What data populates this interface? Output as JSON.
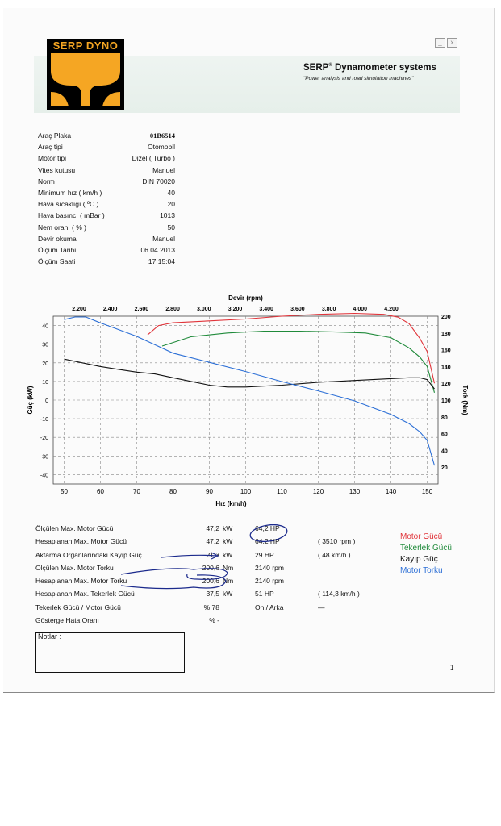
{
  "window_buttons": [
    "_",
    "x"
  ],
  "header": {
    "brand": "SERP DYNO",
    "company": "SERP",
    "company_sup": "®",
    "company_rest": " Dynamometer systems",
    "tagline": "\"Power analysis and road simulation machines\""
  },
  "info": [
    {
      "key": "Araç Plaka",
      "value": "01B6514",
      "bold": true
    },
    {
      "key": "Araç tipi",
      "value": "Otomobil"
    },
    {
      "key": "Motor tipi",
      "value": "Dizel ( Turbo )"
    },
    {
      "key": "Vites kutusu",
      "value": "Manuel"
    },
    {
      "key": "Norm",
      "value": "DIN 70020"
    },
    {
      "key": "Minimum hız  ( km/h )",
      "value": "40"
    },
    {
      "key": "Hava sıcaklığı ( ºC )",
      "value": "20"
    },
    {
      "key": "Hava basıncı ( mBar )",
      "value": "1013"
    },
    {
      "key": "Nem oranı ( % )",
      "value": "50"
    },
    {
      "key": "Devir okuma",
      "value": "Manuel"
    },
    {
      "key": "Ölçüm Tarihi",
      "value": "06.04.2013"
    },
    {
      "key": "Ölçüm Saati",
      "value": "17:15:04"
    }
  ],
  "chart_data": {
    "type": "line",
    "x_top_label": "Devir (rpm)",
    "x_top_ticks": [
      "2.200",
      "2.400",
      "2.600",
      "2.800",
      "3.000",
      "3.200",
      "3.400",
      "3.600",
      "3.800",
      "4.000",
      "4.200"
    ],
    "xlabel": "Hız (km/h)",
    "x_ticks": [
      50,
      60,
      70,
      80,
      90,
      100,
      110,
      120,
      130,
      140,
      150
    ],
    "xlim": [
      47,
      153
    ],
    "ylabel_left": "Güç (kW)",
    "y_left_ticks": [
      40,
      30,
      20,
      10,
      0,
      -10,
      -20,
      -30,
      -40
    ],
    "ylim_left": [
      -45,
      45
    ],
    "ylabel_right": "Tork (Nm)",
    "y_right_ticks": [
      200,
      180,
      160,
      140,
      120,
      100,
      80,
      60,
      40,
      20
    ],
    "ylim_right": [
      0,
      200
    ],
    "grid": true,
    "series": [
      {
        "name": "Motor Gücü",
        "color": "#e0343a",
        "axis": "left",
        "x": [
          73,
          76,
          80,
          90,
          100,
          110,
          120,
          130,
          138,
          142,
          145,
          148,
          150,
          152
        ],
        "y": [
          35,
          40,
          41.5,
          42.5,
          43.5,
          45,
          46,
          46.5,
          46,
          44.5,
          41,
          33,
          26,
          9
        ]
      },
      {
        "name": "Tekerlek Gücü",
        "color": "#1f8a3a",
        "axis": "left",
        "x": [
          77,
          85,
          95,
          105,
          115,
          125,
          133,
          140,
          145,
          148,
          150,
          152
        ],
        "y": [
          29,
          34,
          36,
          37,
          37,
          36.5,
          36,
          33.5,
          28,
          23,
          18,
          4
        ]
      },
      {
        "name": "Kayıp Güç",
        "color": "#111111",
        "axis": "left",
        "x": [
          50,
          55,
          60,
          65,
          70,
          75,
          80,
          85,
          90,
          95,
          100,
          110,
          120,
          130,
          140,
          145,
          148,
          150,
          152
        ],
        "y": [
          22,
          20,
          18,
          16.5,
          15,
          14,
          12,
          10,
          8,
          7,
          7,
          8,
          9.5,
          10.5,
          11.5,
          12,
          12,
          11,
          6
        ]
      },
      {
        "name": "Motor Torku",
        "color": "#2c6fd6",
        "axis": "right",
        "x": [
          50,
          53,
          56,
          60,
          65,
          70,
          75,
          80,
          90,
          100,
          110,
          120,
          130,
          140,
          145,
          148,
          150,
          152
        ],
        "y": [
          196,
          199,
          199,
          192,
          184,
          176,
          166,
          156,
          145,
          134,
          122,
          111,
          99,
          83,
          72,
          62,
          52,
          22
        ]
      }
    ]
  },
  "stats": [
    {
      "label": "Ölçülen Max. Motor Gücü",
      "v1": "47,2",
      "u1": "kW",
      "v2": "64,2 HP",
      "v3": ""
    },
    {
      "label": "Hesaplanan Max. Motor Gücü",
      "v1": "47,2",
      "u1": "kW",
      "v2": "64,2 HP",
      "v3": "( 3510 rpm )"
    },
    {
      "label": "Aktarma Organlarındaki Kayıp Güç",
      "v1": "21,3",
      "u1": "kW",
      "v2": "29 HP",
      "v3": "( 48 km/h )"
    },
    {
      "label": "Ölçülen Max. Motor Torku",
      "v1": "200,6",
      "u1": "Nm",
      "v2": "2140 rpm",
      "v3": ""
    },
    {
      "label": "Hesaplanan Max. Motor Torku",
      "v1": "200,6",
      "u1": "Nm",
      "v2": "2140 rpm",
      "v3": ""
    },
    {
      "label": "Hesaplanan Max. Tekerlek Gücü",
      "v1": "37,5",
      "u1": "kW",
      "v2": "51 HP",
      "v3": "( 114,3 km/h )"
    },
    {
      "label": "Tekerlek Gücü / Motor Gücü",
      "v1": "% 78",
      "u1": "",
      "v2": "On / Arka",
      "v3": "—"
    },
    {
      "label": "Gösterge Hata Oranı",
      "v1": "% -",
      "u1": "",
      "v2": "",
      "v3": ""
    }
  ],
  "legend": [
    {
      "label": "Motor Gücü",
      "color": "#e0343a"
    },
    {
      "label": "Tekerlek Gücü",
      "color": "#1f8a3a"
    },
    {
      "label": "Kayıp Güç",
      "color": "#111111"
    },
    {
      "label": "Motor Torku",
      "color": "#2c6fd6"
    }
  ],
  "notes_label": "Notlar :",
  "page_number": "1"
}
